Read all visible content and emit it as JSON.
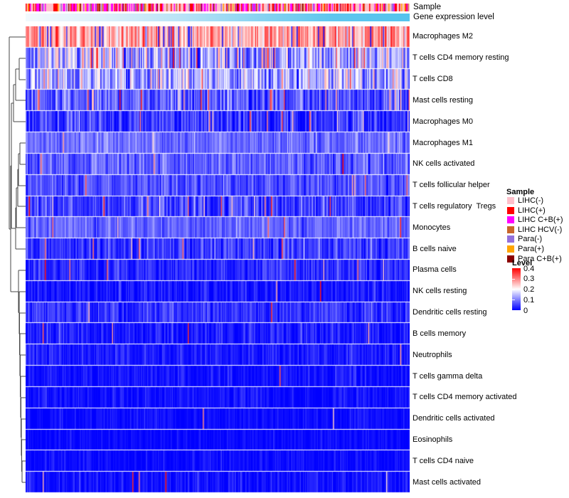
{
  "annotations": {
    "sample_label": "Sample",
    "expression_label": "Gene expression level"
  },
  "legend_sample": {
    "title": "Sample",
    "entries": [
      {
        "label": "LIHC(-)",
        "color": "#FFC0CB"
      },
      {
        "label": "LIHC(+)",
        "color": "#FF0000"
      },
      {
        "label": "LIHC C+B(+)",
        "color": "#FF00FF"
      },
      {
        "label": "LIHC HCV(-)",
        "color": "#C9662A"
      },
      {
        "label": "Para(-)",
        "color": "#9370DB"
      },
      {
        "label": "Para(+)",
        "color": "#FFA500"
      },
      {
        "label": "Para C+B(+)",
        "color": "#8B0000"
      }
    ]
  },
  "legend_level": {
    "title": "Level",
    "ticks": [
      "0.4",
      "0.3",
      "0.2",
      "0.1",
      "0"
    ],
    "gradient_top": "#FF0000",
    "gradient_mid": "#FFFFFF",
    "gradient_bottom": "#0000FF"
  },
  "chart_data": {
    "type": "heatmap",
    "title": "",
    "columns": 360,
    "value_domain": [
      0,
      0.4
    ],
    "colormap": [
      {
        "value": 0.0,
        "color": "#0000FF"
      },
      {
        "value": 0.2,
        "color": "#FFFFFF"
      },
      {
        "value": 0.4,
        "color": "#FF0000"
      }
    ],
    "rows": [
      {
        "label": "Macrophages M2",
        "mean": 0.27,
        "sd": 0.06,
        "spike_prob": 0.0,
        "low_prob": 0.07
      },
      {
        "label": "T cells CD4 memory resting",
        "mean": 0.15,
        "sd": 0.07,
        "spike_prob": 0.02,
        "low_prob": 0.05
      },
      {
        "label": "T cells CD8",
        "mean": 0.14,
        "sd": 0.065,
        "spike_prob": 0.02,
        "low_prob": 0.05
      },
      {
        "label": "Mast cells resting",
        "mean": 0.07,
        "sd": 0.045,
        "spike_prob": 0.05,
        "low_prob": 0
      },
      {
        "label": "Macrophages M0",
        "mean": 0.045,
        "sd": 0.04,
        "spike_prob": 0.035,
        "low_prob": 0
      },
      {
        "label": "Macrophages M1",
        "mean": 0.085,
        "sd": 0.028,
        "spike_prob": 0.01,
        "low_prob": 0
      },
      {
        "label": "NK cells activated",
        "mean": 0.075,
        "sd": 0.033,
        "spike_prob": 0.01,
        "low_prob": 0
      },
      {
        "label": "T cells follicular helper",
        "mean": 0.063,
        "sd": 0.03,
        "spike_prob": 0.012,
        "low_prob": 0
      },
      {
        "label": "T cells regulatory  Tregs",
        "mean": 0.05,
        "sd": 0.038,
        "spike_prob": 0.03,
        "low_prob": 0
      },
      {
        "label": "Monocytes",
        "mean": 0.08,
        "sd": 0.026,
        "spike_prob": 0.012,
        "low_prob": 0
      },
      {
        "label": "B cells naive",
        "mean": 0.046,
        "sd": 0.034,
        "spike_prob": 0.012,
        "low_prob": 0
      },
      {
        "label": "Plasma cells",
        "mean": 0.032,
        "sd": 0.028,
        "spike_prob": 0.02,
        "low_prob": 0
      },
      {
        "label": "NK cells resting",
        "mean": 0.018,
        "sd": 0.022,
        "spike_prob": 0.006,
        "low_prob": 0
      },
      {
        "label": "Dendritic cells resting",
        "mean": 0.04,
        "sd": 0.028,
        "spike_prob": 0.005,
        "low_prob": 0
      },
      {
        "label": "B cells memory",
        "mean": 0.02,
        "sd": 0.024,
        "spike_prob": 0.006,
        "low_prob": 0
      },
      {
        "label": "Neutrophils",
        "mean": 0.022,
        "sd": 0.02,
        "spike_prob": 0.004,
        "low_prob": 0
      },
      {
        "label": "T cells gamma delta",
        "mean": 0.014,
        "sd": 0.018,
        "spike_prob": 0.003,
        "low_prob": 0
      },
      {
        "label": "T cells CD4 memory activated",
        "mean": 0.013,
        "sd": 0.017,
        "spike_prob": 0.003,
        "low_prob": 0
      },
      {
        "label": "Dendritic cells activated",
        "mean": 0.009,
        "sd": 0.014,
        "spike_prob": 0.002,
        "low_prob": 0
      },
      {
        "label": "Eosinophils",
        "mean": 0.007,
        "sd": 0.012,
        "spike_prob": 0.002,
        "low_prob": 0
      },
      {
        "label": "T cells CD4 naive",
        "mean": 0.008,
        "sd": 0.013,
        "spike_prob": 0.002,
        "low_prob": 0
      },
      {
        "label": "Mast cells activated",
        "mean": 0.013,
        "sd": 0.02,
        "spike_prob": 0.005,
        "low_prob": 0
      }
    ],
    "sample_annotation": {
      "weights": [
        {
          "color": "#FFC0CB",
          "w": 0.4
        },
        {
          "color": "#FF0000",
          "w": 0.2
        },
        {
          "color": "#FF00FF",
          "w": 0.18
        },
        {
          "color": "#9370DB",
          "w": 0.08
        },
        {
          "color": "#C9662A",
          "w": 0.05
        },
        {
          "color": "#FFA500",
          "w": 0.05
        },
        {
          "color": "#8B0000",
          "w": 0.04
        }
      ]
    },
    "expression_annotation": {
      "gradient": [
        "#F2F9FD",
        "#DDEFF9",
        "#B9E3F6",
        "#8AD3F1",
        "#5FC6EE",
        "#55C3ED"
      ]
    },
    "dendrogram_segments": [
      [
        27,
        82,
        27,
        112
      ],
      [
        27,
        82,
        36,
        82
      ],
      [
        27,
        112,
        36,
        112
      ],
      [
        22,
        97,
        22,
        141
      ],
      [
        22,
        97,
        27,
        97
      ],
      [
        22,
        141,
        36,
        141
      ],
      [
        19,
        119,
        19,
        171
      ],
      [
        19,
        119,
        22,
        119
      ],
      [
        19,
        171,
        36,
        171
      ],
      [
        28,
        201,
        28,
        231
      ],
      [
        28,
        201,
        36,
        201
      ],
      [
        28,
        231,
        36,
        231
      ],
      [
        26,
        216,
        26,
        261
      ],
      [
        26,
        216,
        28,
        216
      ],
      [
        26,
        261,
        36,
        261
      ],
      [
        25,
        238,
        25,
        290
      ],
      [
        25,
        238,
        26,
        238
      ],
      [
        25,
        290,
        36,
        290
      ],
      [
        23,
        264,
        23,
        320
      ],
      [
        23,
        264,
        25,
        264
      ],
      [
        23,
        320,
        36,
        320
      ],
      [
        22,
        292,
        22,
        350
      ],
      [
        22,
        292,
        23,
        292
      ],
      [
        22,
        350,
        36,
        350
      ],
      [
        16,
        145,
        16,
        321
      ],
      [
        16,
        145,
        19,
        145
      ],
      [
        16,
        321,
        22,
        321
      ],
      [
        31,
        648,
        31,
        678
      ],
      [
        31,
        648,
        36,
        648
      ],
      [
        31,
        678,
        36,
        678
      ],
      [
        30.5,
        618,
        30.5,
        663
      ],
      [
        30.5,
        663,
        31,
        663
      ],
      [
        30.5,
        618,
        36,
        618
      ],
      [
        30,
        589,
        30,
        640.5
      ],
      [
        30,
        640.5,
        30.5,
        640.5
      ],
      [
        30,
        589,
        36,
        589
      ],
      [
        29.5,
        559,
        29.5,
        614.8
      ],
      [
        29.5,
        614.8,
        30,
        614.8
      ],
      [
        29.5,
        559,
        36,
        559
      ],
      [
        29,
        529,
        29,
        586.9
      ],
      [
        29,
        586.9,
        29.5,
        586.9
      ],
      [
        29,
        529,
        36,
        529
      ],
      [
        28.5,
        499,
        28.5,
        558
      ],
      [
        28.5,
        558,
        29,
        558
      ],
      [
        28.5,
        499,
        36,
        499
      ],
      [
        28,
        469,
        28,
        528.5
      ],
      [
        28,
        528.5,
        28.5,
        528.5
      ],
      [
        28,
        469,
        36,
        469
      ],
      [
        27.5,
        440,
        27.5,
        498.8
      ],
      [
        27.5,
        498.8,
        28,
        498.8
      ],
      [
        27.5,
        440,
        36,
        440
      ],
      [
        27,
        410,
        27,
        469.4
      ],
      [
        27,
        469.4,
        27.5,
        469.4
      ],
      [
        27,
        410,
        36,
        410
      ],
      [
        26,
        380,
        26,
        439.7
      ],
      [
        26,
        439.7,
        27,
        439.7
      ],
      [
        26,
        380,
        36,
        380
      ],
      [
        15,
        233,
        15,
        409.9
      ],
      [
        15,
        233,
        16,
        233
      ],
      [
        15,
        409.9,
        26,
        409.9
      ],
      [
        13,
        52,
        13,
        322
      ],
      [
        13,
        52,
        36,
        52
      ],
      [
        13,
        322,
        15,
        322
      ]
    ]
  }
}
